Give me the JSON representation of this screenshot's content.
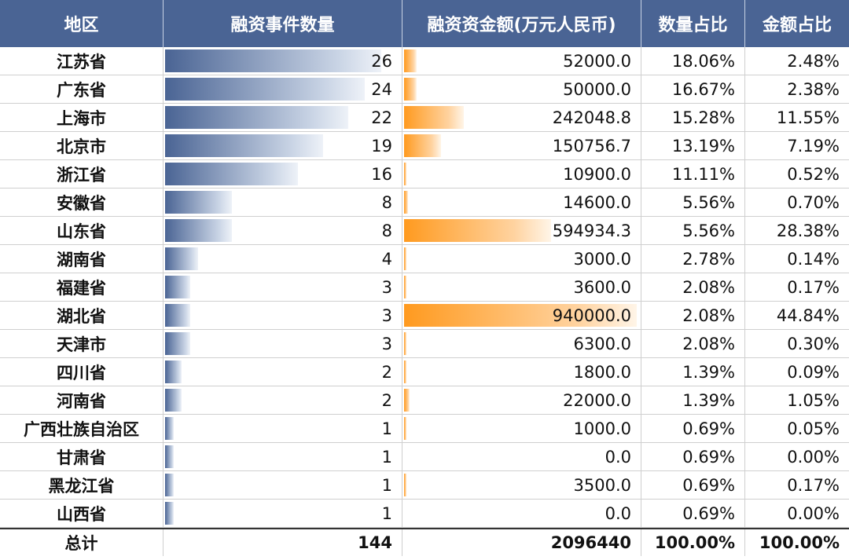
{
  "chart_data": {
    "type": "table",
    "columns": [
      "地区",
      "融资事件数量",
      "融资资金额(万元人民币)",
      "数量占比",
      "金额占比"
    ],
    "rows": [
      {
        "region": "江苏省",
        "count": 26,
        "amount": "52000.0",
        "amount_value": 52000.0,
        "count_pct": "18.06%",
        "amount_pct": "2.48%"
      },
      {
        "region": "广东省",
        "count": 24,
        "amount": "50000.0",
        "amount_value": 50000.0,
        "count_pct": "16.67%",
        "amount_pct": "2.38%"
      },
      {
        "region": "上海市",
        "count": 22,
        "amount": "242048.8",
        "amount_value": 242048.8,
        "count_pct": "15.28%",
        "amount_pct": "11.55%"
      },
      {
        "region": "北京市",
        "count": 19,
        "amount": "150756.7",
        "amount_value": 150756.7,
        "count_pct": "13.19%",
        "amount_pct": "7.19%"
      },
      {
        "region": "浙江省",
        "count": 16,
        "amount": "10900.0",
        "amount_value": 10900.0,
        "count_pct": "11.11%",
        "amount_pct": "0.52%"
      },
      {
        "region": "安徽省",
        "count": 8,
        "amount": "14600.0",
        "amount_value": 14600.0,
        "count_pct": "5.56%",
        "amount_pct": "0.70%"
      },
      {
        "region": "山东省",
        "count": 8,
        "amount": "594934.3",
        "amount_value": 594934.3,
        "count_pct": "5.56%",
        "amount_pct": "28.38%"
      },
      {
        "region": "湖南省",
        "count": 4,
        "amount": "3000.0",
        "amount_value": 3000.0,
        "count_pct": "2.78%",
        "amount_pct": "0.14%"
      },
      {
        "region": "福建省",
        "count": 3,
        "amount": "3600.0",
        "amount_value": 3600.0,
        "count_pct": "2.08%",
        "amount_pct": "0.17%"
      },
      {
        "region": "湖北省",
        "count": 3,
        "amount": "940000.0",
        "amount_value": 940000.0,
        "count_pct": "2.08%",
        "amount_pct": "44.84%"
      },
      {
        "region": "天津市",
        "count": 3,
        "amount": "6300.0",
        "amount_value": 6300.0,
        "count_pct": "2.08%",
        "amount_pct": "0.30%"
      },
      {
        "region": "四川省",
        "count": 2,
        "amount": "1800.0",
        "amount_value": 1800.0,
        "count_pct": "1.39%",
        "amount_pct": "0.09%"
      },
      {
        "region": "河南省",
        "count": 2,
        "amount": "22000.0",
        "amount_value": 22000.0,
        "count_pct": "1.39%",
        "amount_pct": "1.05%"
      },
      {
        "region": "广西壮族自治区",
        "count": 1,
        "amount": "1000.0",
        "amount_value": 1000.0,
        "count_pct": "0.69%",
        "amount_pct": "0.05%"
      },
      {
        "region": "甘肃省",
        "count": 1,
        "amount": "0.0",
        "amount_value": 0.0,
        "count_pct": "0.69%",
        "amount_pct": "0.00%"
      },
      {
        "region": "黑龙江省",
        "count": 1,
        "amount": "3500.0",
        "amount_value": 3500.0,
        "count_pct": "0.69%",
        "amount_pct": "0.17%"
      },
      {
        "region": "山西省",
        "count": 1,
        "amount": "0.0",
        "amount_value": 0.0,
        "count_pct": "0.69%",
        "amount_pct": "0.00%"
      }
    ],
    "total": {
      "region": "总计",
      "count": "144",
      "amount": "2096440",
      "count_pct": "100.00%",
      "amount_pct": "100.00%"
    },
    "count_bar_max": 26,
    "amount_bar_max": 940000,
    "colors": {
      "header_bg": "#4a6494",
      "count_bar": "#4a6494",
      "amount_bar": "#ff9a1f"
    }
  }
}
